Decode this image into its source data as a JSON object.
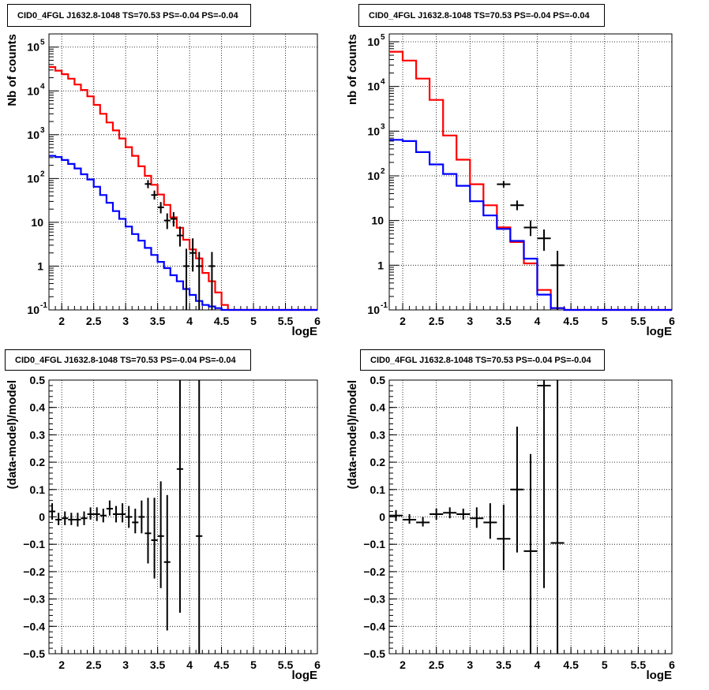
{
  "colors": {
    "model_total": "#ff0000",
    "model_component": "#0000ff",
    "data": "#000000",
    "grid": "#000000"
  },
  "panels": [
    {
      "title": "CID0_4FGL J1632.8-1048 TS=70.53 PS=-0.04 PS=-0.04"
    },
    {
      "title": "CID0_4FGL J1632.8-1048 TS=70.53 PS=-0.04 PS=-0.04"
    },
    {
      "title": "CID0_4FGL J1632.8-1048 TS=70.53 PS=-0.04 PS=-0.04"
    },
    {
      "title": "CID0_4FGL J1632.8-1048 TS=70.53 PS=-0.04 PS=-0.04"
    }
  ],
  "chart_data": [
    {
      "type": "line",
      "panel": "top-left",
      "xlabel": "logE",
      "ylabel": "Nb of counts",
      "xlim": [
        1.8,
        6.0
      ],
      "ylim": [
        0.1,
        200000
      ],
      "yscale": "log",
      "grid": true,
      "x_ticks": [
        "2",
        "2.5",
        "3",
        "3.5",
        "4",
        "4.5",
        "5",
        "5.5",
        "6"
      ],
      "y_ticks": [
        {
          "v": 0.1,
          "base": "10",
          "exp": "-1"
        },
        {
          "v": 1,
          "label": "1"
        },
        {
          "v": 10,
          "label": "10"
        },
        {
          "v": 100,
          "base": "10",
          "exp": "2"
        },
        {
          "v": 1000,
          "base": "10",
          "exp": "3"
        },
        {
          "v": 10000,
          "base": "10",
          "exp": "4"
        },
        {
          "v": 100000,
          "base": "10",
          "exp": "5"
        }
      ],
      "bin_edges": [
        1.8,
        1.9,
        2.0,
        2.1,
        2.2,
        2.3,
        2.4,
        2.5,
        2.6,
        2.7,
        2.8,
        2.9,
        3.0,
        3.1,
        3.2,
        3.3,
        3.4,
        3.5,
        3.6,
        3.7,
        3.8,
        3.9,
        4.0,
        4.1,
        4.2,
        4.3,
        4.4,
        4.5,
        4.6,
        4.7,
        6.0
      ],
      "series": [
        {
          "role": "model_total",
          "values": [
            35000,
            29000,
            24000,
            19000,
            14000,
            10500,
            7500,
            4800,
            3000,
            1900,
            1250,
            820,
            520,
            330,
            190,
            115,
            72,
            43,
            25,
            13,
            7.5,
            4,
            2.4,
            1.5,
            0.7,
            0.45,
            0.25,
            0.13,
            0.1,
            0.1
          ]
        },
        {
          "role": "model_component",
          "values": [
            330,
            310,
            265,
            215,
            170,
            125,
            95,
            65,
            42,
            28,
            18,
            12,
            8,
            5.4,
            3.8,
            2.6,
            1.8,
            1.25,
            0.9,
            0.62,
            0.45,
            0.3,
            0.22,
            0.16,
            0.13,
            0.12,
            0.11,
            0.1,
            0.1,
            0.1
          ]
        }
      ],
      "points": [
        {
          "x": 3.35,
          "y": 75,
          "lo": 60,
          "hi": 92,
          "dx": 0.05
        },
        {
          "x": 3.45,
          "y": 42,
          "lo": 33,
          "hi": 53,
          "dx": 0.05
        },
        {
          "x": 3.55,
          "y": 22,
          "lo": 16,
          "hi": 29,
          "dx": 0.05
        },
        {
          "x": 3.65,
          "y": 11,
          "lo": 7,
          "hi": 16,
          "dx": 0.05
        },
        {
          "x": 3.75,
          "y": 12,
          "lo": 8,
          "hi": 17,
          "dx": 0.05
        },
        {
          "x": 3.85,
          "y": 5,
          "lo": 2.8,
          "hi": 8,
          "dx": 0.05
        },
        {
          "x": 3.95,
          "y": 1,
          "lo": 0.1,
          "hi": 2.5,
          "dx": 0.05
        },
        {
          "x": 4.05,
          "y": 2,
          "lo": 0.75,
          "hi": 4.3,
          "dx": 0.05
        },
        {
          "x": 4.15,
          "y": 1,
          "lo": 0.1,
          "hi": 2.1,
          "dx": 0.05
        },
        {
          "x": 4.35,
          "y": 1,
          "lo": 0.1,
          "hi": 2.1,
          "dx": 0.05
        }
      ]
    },
    {
      "type": "line",
      "panel": "top-right",
      "xlabel": "logE",
      "ylabel": "nb of counts",
      "xlim": [
        1.8,
        6.0
      ],
      "ylim": [
        0.1,
        150000
      ],
      "yscale": "log",
      "grid": true,
      "x_ticks": [
        "2",
        "2.5",
        "3",
        "3.5",
        "4",
        "4.5",
        "5",
        "5.5",
        "6"
      ],
      "y_ticks": [
        {
          "v": 0.1,
          "base": "10",
          "exp": "-1"
        },
        {
          "v": 1,
          "label": "1"
        },
        {
          "v": 10,
          "label": "10"
        },
        {
          "v": 100,
          "base": "10",
          "exp": "2"
        },
        {
          "v": 1000,
          "base": "10",
          "exp": "3"
        },
        {
          "v": 10000,
          "base": "10",
          "exp": "4"
        },
        {
          "v": 100000,
          "base": "10",
          "exp": "5"
        }
      ],
      "bin_edges": [
        1.8,
        2.0,
        2.2,
        2.4,
        2.6,
        2.8,
        3.0,
        3.2,
        3.4,
        3.6,
        3.8,
        4.0,
        4.2,
        4.4,
        4.6,
        4.8,
        6.0
      ],
      "series": [
        {
          "role": "model_total",
          "values": [
            60000,
            38000,
            15000,
            5000,
            800,
            230,
            65,
            22,
            7,
            3.3,
            1.1,
            0.28,
            0.11,
            0.1,
            0.1,
            0.1
          ]
        },
        {
          "role": "model_component",
          "values": [
            640,
            600,
            340,
            180,
            110,
            60,
            27,
            13,
            6.5,
            3.5,
            1.4,
            0.22,
            0.11,
            0.1,
            0.1,
            0.1
          ]
        }
      ],
      "points": [
        {
          "x": 3.5,
          "y": 65,
          "lo": 55,
          "hi": 76,
          "dx": 0.1
        },
        {
          "x": 3.7,
          "y": 22,
          "lo": 17,
          "hi": 28,
          "dx": 0.1
        },
        {
          "x": 3.9,
          "y": 7,
          "lo": 4.5,
          "hi": 10,
          "dx": 0.1
        },
        {
          "x": 4.1,
          "y": 4,
          "lo": 2.1,
          "hi": 6.3,
          "dx": 0.1
        },
        {
          "x": 4.3,
          "y": 1,
          "lo": 0.1,
          "hi": 2.1,
          "dx": 0.1
        }
      ]
    },
    {
      "type": "scatter",
      "panel": "bottom-left",
      "xlabel": "logE",
      "ylabel": "(data-model)/model",
      "xlim": [
        1.8,
        6.0
      ],
      "ylim": [
        -0.5,
        0.5
      ],
      "grid": true,
      "x_ticks": [
        "2",
        "2.5",
        "3",
        "3.5",
        "4",
        "4.5",
        "5",
        "5.5",
        "6"
      ],
      "y_ticks": [
        "−0.5",
        "−0.4",
        "−0.3",
        "−0.2",
        "−0.1",
        "0",
        "0.1",
        "0.2",
        "0.3",
        "0.4",
        "0.5"
      ],
      "points": [
        {
          "x": 1.85,
          "y": 0.02,
          "lo": -0.01,
          "hi": 0.05,
          "dx": 0.05
        },
        {
          "x": 1.95,
          "y": -0.01,
          "lo": -0.03,
          "hi": 0.015,
          "dx": 0.05
        },
        {
          "x": 2.05,
          "y": -0.005,
          "lo": -0.03,
          "hi": 0.02,
          "dx": 0.05
        },
        {
          "x": 2.15,
          "y": -0.01,
          "lo": -0.03,
          "hi": 0.015,
          "dx": 0.05
        },
        {
          "x": 2.25,
          "y": -0.01,
          "lo": -0.035,
          "hi": 0.015,
          "dx": 0.05
        },
        {
          "x": 2.35,
          "y": -0.005,
          "lo": -0.03,
          "hi": 0.02,
          "dx": 0.05
        },
        {
          "x": 2.45,
          "y": 0.01,
          "lo": -0.01,
          "hi": 0.035,
          "dx": 0.05
        },
        {
          "x": 2.55,
          "y": 0.01,
          "lo": -0.015,
          "hi": 0.035,
          "dx": 0.05
        },
        {
          "x": 2.65,
          "y": 0.005,
          "lo": -0.02,
          "hi": 0.03,
          "dx": 0.05
        },
        {
          "x": 2.75,
          "y": 0.03,
          "lo": 0.005,
          "hi": 0.06,
          "dx": 0.05
        },
        {
          "x": 2.85,
          "y": 0.01,
          "lo": -0.02,
          "hi": 0.04,
          "dx": 0.05
        },
        {
          "x": 2.95,
          "y": 0.01,
          "lo": -0.02,
          "hi": 0.05,
          "dx": 0.05
        },
        {
          "x": 3.05,
          "y": 0.0,
          "lo": -0.04,
          "hi": 0.04,
          "dx": 0.05
        },
        {
          "x": 3.15,
          "y": -0.02,
          "lo": -0.06,
          "hi": 0.03,
          "dx": 0.05
        },
        {
          "x": 3.25,
          "y": 0.0,
          "lo": -0.06,
          "hi": 0.06,
          "dx": 0.05
        },
        {
          "x": 3.35,
          "y": -0.06,
          "lo": -0.17,
          "hi": 0.07,
          "dx": 0.05
        },
        {
          "x": 3.45,
          "y": -0.085,
          "lo": -0.225,
          "hi": 0.07,
          "dx": 0.05
        },
        {
          "x": 3.55,
          "y": -0.07,
          "lo": -0.26,
          "hi": 0.13,
          "dx": 0.05
        },
        {
          "x": 3.65,
          "y": -0.165,
          "lo": -0.415,
          "hi": 0.08,
          "dx": 0.05
        },
        {
          "x": 3.85,
          "y": 0.175,
          "lo": -0.35,
          "hi": 0.5,
          "dx": 0.05
        },
        {
          "x": 4.15,
          "y": -0.07,
          "lo": -0.5,
          "hi": 0.5,
          "dx": 0.05
        }
      ]
    },
    {
      "type": "scatter",
      "panel": "bottom-right",
      "xlabel": "logE",
      "ylabel": "(data-model)/model",
      "xlim": [
        1.8,
        6.0
      ],
      "ylim": [
        -0.5,
        0.5
      ],
      "grid": true,
      "x_ticks": [
        "2",
        "2.5",
        "3",
        "3.5",
        "4",
        "4.5",
        "5",
        "5.5",
        "6"
      ],
      "y_ticks": [
        "−0.5",
        "−0.4",
        "−0.3",
        "−0.2",
        "−0.1",
        "0",
        "0.1",
        "0.2",
        "0.3",
        "0.4",
        "0.5"
      ],
      "points": [
        {
          "x": 1.9,
          "y": 0.005,
          "lo": -0.015,
          "hi": 0.025,
          "dx": 0.1
        },
        {
          "x": 2.1,
          "y": -0.01,
          "lo": -0.025,
          "hi": 0.01,
          "dx": 0.1
        },
        {
          "x": 2.3,
          "y": -0.02,
          "lo": -0.035,
          "hi": 0.0,
          "dx": 0.1
        },
        {
          "x": 2.5,
          "y": 0.01,
          "lo": -0.01,
          "hi": 0.03,
          "dx": 0.1
        },
        {
          "x": 2.7,
          "y": 0.015,
          "lo": -0.005,
          "hi": 0.035,
          "dx": 0.1
        },
        {
          "x": 2.9,
          "y": 0.01,
          "lo": -0.01,
          "hi": 0.03,
          "dx": 0.1
        },
        {
          "x": 3.1,
          "y": -0.005,
          "lo": -0.04,
          "hi": 0.035,
          "dx": 0.1
        },
        {
          "x": 3.3,
          "y": -0.02,
          "lo": -0.08,
          "hi": 0.05,
          "dx": 0.1
        },
        {
          "x": 3.5,
          "y": -0.08,
          "lo": -0.195,
          "hi": 0.045,
          "dx": 0.1
        },
        {
          "x": 3.7,
          "y": 0.1,
          "lo": -0.13,
          "hi": 0.33,
          "dx": 0.1
        },
        {
          "x": 3.9,
          "y": -0.125,
          "lo": -0.5,
          "hi": 0.23,
          "dx": 0.1
        },
        {
          "x": 4.1,
          "y": 0.48,
          "lo": -0.26,
          "hi": 0.5,
          "dx": 0.1
        },
        {
          "x": 4.3,
          "y": -0.095,
          "lo": -0.5,
          "hi": 0.5,
          "dx": 0.1
        }
      ]
    }
  ]
}
